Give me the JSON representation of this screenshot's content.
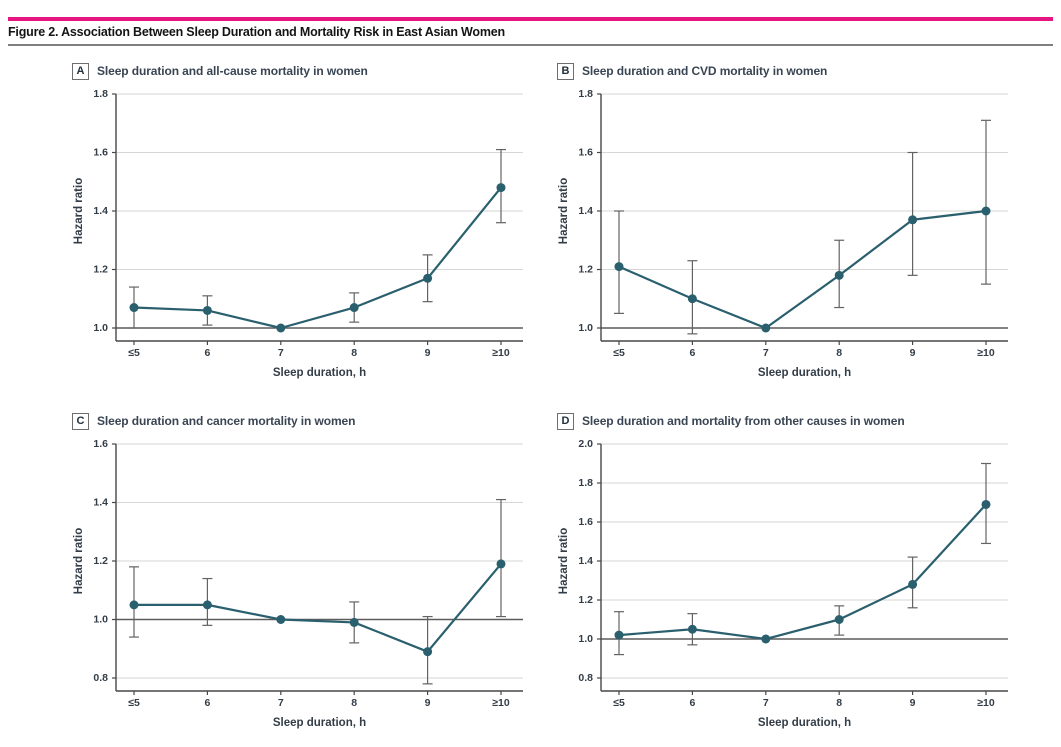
{
  "page": {
    "figure_title": "Figure 2. Association Between Sleep Duration and Mortality Risk in East Asian Women"
  },
  "colors": {
    "accent_rule": "#e6157f",
    "divider_rule": "#7f7f7f",
    "series": "#2a5f6e",
    "error_bar": "#636363",
    "grid": "#d6d6d6",
    "axis": "#474747",
    "reference_line": "#5c5c5c",
    "text": "#333d47"
  },
  "chart_data": [
    {
      "type": "line",
      "panel": "A",
      "title": "Sleep duration and all-cause mortality in women",
      "xlabel": "Sleep duration, h",
      "ylabel": "Hazard ratio",
      "categories": [
        "≤5",
        "6",
        "7",
        "8",
        "9",
        "≥10"
      ],
      "ylim": [
        1.0,
        1.8
      ],
      "yticks": [
        1.0,
        1.2,
        1.4,
        1.6,
        1.8
      ],
      "reference_y": 1.0,
      "grid": true,
      "legend": "none",
      "values": [
        1.07,
        1.06,
        1.0,
        1.07,
        1.17,
        1.48
      ],
      "ci_low": [
        1.0,
        1.01,
        null,
        1.02,
        1.09,
        1.36
      ],
      "ci_high": [
        1.14,
        1.11,
        null,
        1.12,
        1.25,
        1.61
      ]
    },
    {
      "type": "line",
      "panel": "B",
      "title": "Sleep duration and CVD mortality in women",
      "xlabel": "Sleep duration, h",
      "ylabel": "Hazard ratio",
      "categories": [
        "≤5",
        "6",
        "7",
        "8",
        "9",
        "≥10"
      ],
      "ylim": [
        1.0,
        1.8
      ],
      "yticks": [
        1.0,
        1.2,
        1.4,
        1.6,
        1.8
      ],
      "reference_y": 1.0,
      "grid": true,
      "legend": "none",
      "values": [
        1.21,
        1.1,
        1.0,
        1.18,
        1.37,
        1.4
      ],
      "ci_low": [
        1.05,
        0.98,
        null,
        1.07,
        1.18,
        1.15
      ],
      "ci_high": [
        1.4,
        1.23,
        null,
        1.3,
        1.6,
        1.71
      ]
    },
    {
      "type": "line",
      "panel": "C",
      "title": "Sleep duration and cancer mortality in women",
      "xlabel": "Sleep duration, h",
      "ylabel": "Hazard ratio",
      "categories": [
        "≤5",
        "6",
        "7",
        "8",
        "9",
        "≥10"
      ],
      "ylim": [
        0.8,
        1.6
      ],
      "yticks": [
        0.8,
        1.0,
        1.2,
        1.4,
        1.6
      ],
      "reference_y": 1.0,
      "grid": true,
      "legend": "none",
      "values": [
        1.05,
        1.05,
        1.0,
        0.99,
        0.89,
        1.19
      ],
      "ci_low": [
        0.94,
        0.98,
        null,
        0.92,
        0.78,
        1.01
      ],
      "ci_high": [
        1.18,
        1.14,
        null,
        1.06,
        1.01,
        1.41
      ]
    },
    {
      "type": "line",
      "panel": "D",
      "title": "Sleep duration and mortality from other causes in women",
      "xlabel": "Sleep duration, h",
      "ylabel": "Hazard ratio",
      "categories": [
        "≤5",
        "6",
        "7",
        "8",
        "9",
        "≥10"
      ],
      "ylim": [
        0.8,
        2.0
      ],
      "yticks": [
        0.8,
        1.0,
        1.2,
        1.4,
        1.6,
        1.8,
        2.0
      ],
      "reference_y": 1.0,
      "grid": true,
      "legend": "none",
      "values": [
        1.02,
        1.05,
        1.0,
        1.1,
        1.28,
        1.69
      ],
      "ci_low": [
        0.92,
        0.97,
        null,
        1.02,
        1.16,
        1.49
      ],
      "ci_high": [
        1.14,
        1.13,
        null,
        1.17,
        1.42,
        1.9
      ]
    }
  ]
}
